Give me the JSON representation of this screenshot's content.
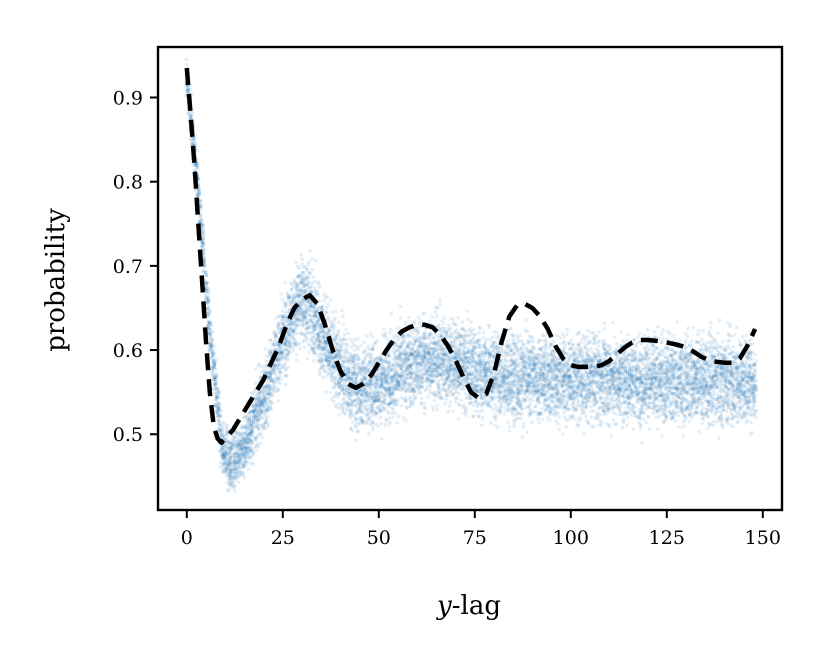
{
  "chart_data": {
    "type": "scatter",
    "title": "",
    "xlabel_var": "y",
    "xlabel_rest": "-lag",
    "ylabel": "probability",
    "xlim": [
      -7.5,
      155
    ],
    "ylim": [
      0.41,
      0.96
    ],
    "x_ticks": [
      0,
      25,
      50,
      75,
      100,
      125,
      150
    ],
    "x_tick_labels": [
      "0",
      "25",
      "50",
      "75",
      "100",
      "125",
      "150"
    ],
    "y_ticks": [
      0.5,
      0.6,
      0.7,
      0.8,
      0.9
    ],
    "y_tick_labels": [
      "0.5",
      "0.6",
      "0.7",
      "0.8",
      "0.9"
    ],
    "grid": false,
    "legend": "none",
    "colors": {
      "scatter": "#1f77b4",
      "line": "#000000"
    },
    "series": [
      {
        "kind": "scatter",
        "x_range": [
          0,
          148
        ],
        "center_curve": {
          "x": [
            0,
            3,
            6,
            9,
            11,
            15,
            20,
            25,
            29,
            31,
            35,
            40,
            45,
            50,
            55,
            60,
            65,
            70,
            75,
            80,
            85,
            90,
            95,
            100,
            105,
            110,
            115,
            120,
            125,
            130,
            135,
            140,
            145,
            148
          ],
          "y": [
            0.92,
            0.79,
            0.62,
            0.49,
            0.465,
            0.485,
            0.545,
            0.61,
            0.655,
            0.66,
            0.62,
            0.575,
            0.555,
            0.56,
            0.575,
            0.585,
            0.59,
            0.585,
            0.575,
            0.57,
            0.568,
            0.568,
            0.567,
            0.566,
            0.566,
            0.566,
            0.565,
            0.565,
            0.565,
            0.565,
            0.564,
            0.564,
            0.564,
            0.564
          ]
        },
        "spread_near_start": 0.02,
        "spread_tail": 0.045
      },
      {
        "kind": "line",
        "style": "dashed",
        "x": [
          0,
          1,
          2,
          3,
          4,
          5,
          6,
          7,
          8,
          9,
          10,
          12,
          14,
          16,
          18,
          20,
          22,
          24,
          26,
          28,
          30,
          32,
          34,
          36,
          38,
          40,
          42,
          44,
          46,
          48,
          50,
          52,
          54,
          56,
          58,
          60,
          62,
          64,
          66,
          68,
          70,
          72,
          74,
          76,
          78,
          80,
          82,
          84,
          86,
          88,
          90,
          92,
          94,
          96,
          98,
          100,
          102,
          104,
          106,
          108,
          110,
          112,
          114,
          116,
          118,
          120,
          122,
          124,
          126,
          128,
          130,
          132,
          134,
          136,
          138,
          140,
          142,
          144,
          146,
          148
        ],
        "y": [
          0.935,
          0.88,
          0.82,
          0.75,
          0.68,
          0.61,
          0.55,
          0.51,
          0.495,
          0.49,
          0.495,
          0.505,
          0.52,
          0.535,
          0.55,
          0.565,
          0.585,
          0.605,
          0.63,
          0.65,
          0.66,
          0.665,
          0.655,
          0.63,
          0.6,
          0.575,
          0.56,
          0.555,
          0.56,
          0.57,
          0.585,
          0.6,
          0.613,
          0.622,
          0.627,
          0.63,
          0.63,
          0.627,
          0.618,
          0.605,
          0.588,
          0.568,
          0.55,
          0.543,
          0.548,
          0.572,
          0.61,
          0.64,
          0.653,
          0.655,
          0.65,
          0.64,
          0.625,
          0.605,
          0.59,
          0.582,
          0.58,
          0.58,
          0.58,
          0.582,
          0.587,
          0.595,
          0.603,
          0.609,
          0.612,
          0.612,
          0.611,
          0.61,
          0.608,
          0.606,
          0.603,
          0.598,
          0.592,
          0.588,
          0.586,
          0.585,
          0.585,
          0.59,
          0.605,
          0.625
        ]
      }
    ]
  }
}
